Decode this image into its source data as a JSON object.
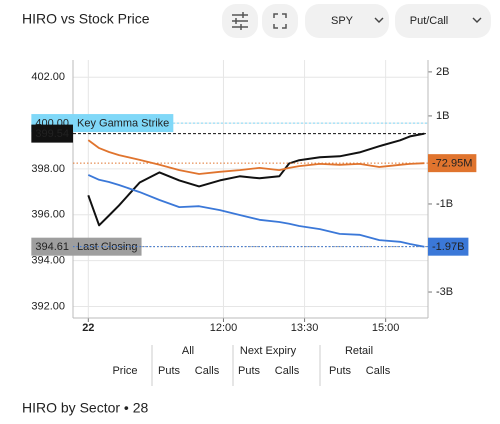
{
  "ui": {
    "symbol": "SPY",
    "mode": "Put/Call",
    "footer": "HIRO by Sector • 28"
  },
  "chart_data": {
    "type": "line",
    "title": "HIRO vs Stock Price",
    "x": [
      570,
      582,
      593,
      604,
      627,
      649,
      671,
      693,
      716,
      738,
      760,
      782,
      793,
      804,
      827,
      849,
      871,
      893,
      916,
      927,
      943
    ],
    "xlim": [
      553,
      947
    ],
    "xticks": [
      {
        "value": 570,
        "label": "22"
      },
      {
        "value": 720,
        "label": "12:00"
      },
      {
        "value": 810,
        "label": "13:30"
      },
      {
        "value": 900,
        "label": "15:00"
      }
    ],
    "ylim": [
      391.5,
      402.75
    ],
    "yticks": [
      {
        "value": 392,
        "label": "392.00"
      },
      {
        "value": 394,
        "label": "394.00"
      },
      {
        "value": 396,
        "label": "396.00"
      },
      {
        "value": 398,
        "label": "398.00"
      },
      {
        "value": 400,
        "label": "400.00"
      },
      {
        "value": 402,
        "label": "402.00"
      }
    ],
    "y2lim": [
      -3590000000,
      2270000000
    ],
    "y2ticks": [
      {
        "value": -3000000000,
        "label": "-3B"
      },
      {
        "value": -1000000000,
        "label": "-1B"
      },
      {
        "value": 1000000000,
        "label": "1B"
      },
      {
        "value": 2000000000,
        "label": "2B"
      }
    ],
    "grid": true,
    "series": [
      {
        "name": "Price",
        "color": "#111111",
        "values": [
          396.85,
          395.54,
          395.97,
          396.41,
          397.41,
          397.85,
          397.5,
          397.24,
          397.5,
          397.68,
          397.59,
          397.68,
          398.24,
          398.38,
          398.51,
          398.55,
          398.72,
          398.99,
          399.25,
          399.42,
          399.54
        ]
      },
      {
        "name": "Puts",
        "color": "#3b78d8",
        "axis": "y2",
        "values": [
          -340000000,
          -450000000,
          -500000000,
          -570000000,
          -730000000,
          -910000000,
          -1070000000,
          -1050000000,
          -1140000000,
          -1250000000,
          -1360000000,
          -1410000000,
          -1450000000,
          -1500000000,
          -1570000000,
          -1680000000,
          -1700000000,
          -1820000000,
          -1860000000,
          -1910000000,
          -1970000000
        ],
        "value_labels": {
          "20": "-1.97B"
        }
      },
      {
        "name": "Calls",
        "color": "#e0742e",
        "axis": "y2",
        "values": [
          450000000,
          270000000,
          180000000,
          110000000,
          0,
          -110000000,
          -230000000,
          -320000000,
          -270000000,
          -230000000,
          -180000000,
          -230000000,
          -180000000,
          -140000000,
          -90000000,
          -110000000,
          -90000000,
          -160000000,
          -110000000,
          -90000000,
          -72950000
        ],
        "value_labels": {
          "20": "-72.95M"
        }
      }
    ],
    "reference_lines": [
      {
        "label": "Key Gamma Strike",
        "value": 400,
        "value_label": "400.00",
        "color": "#80d8f8"
      },
      {
        "label": "Last Closing",
        "value": 394.61,
        "color": "#9e9e9e"
      }
    ],
    "legend_groups": [
      {
        "title": "All"
      },
      {
        "title": "Next Expiry",
        "items": [
          {
            "name": "Puts",
            "color": "#1a1aff"
          },
          {
            "name": "Calls",
            "color": "#2ca02c"
          }
        ]
      },
      {
        "title": "Retail",
        "items": [
          {
            "name": "Puts",
            "color": "#b02aa8"
          },
          {
            "name": "Calls",
            "color": "#e0b030"
          }
        ]
      }
    ]
  }
}
